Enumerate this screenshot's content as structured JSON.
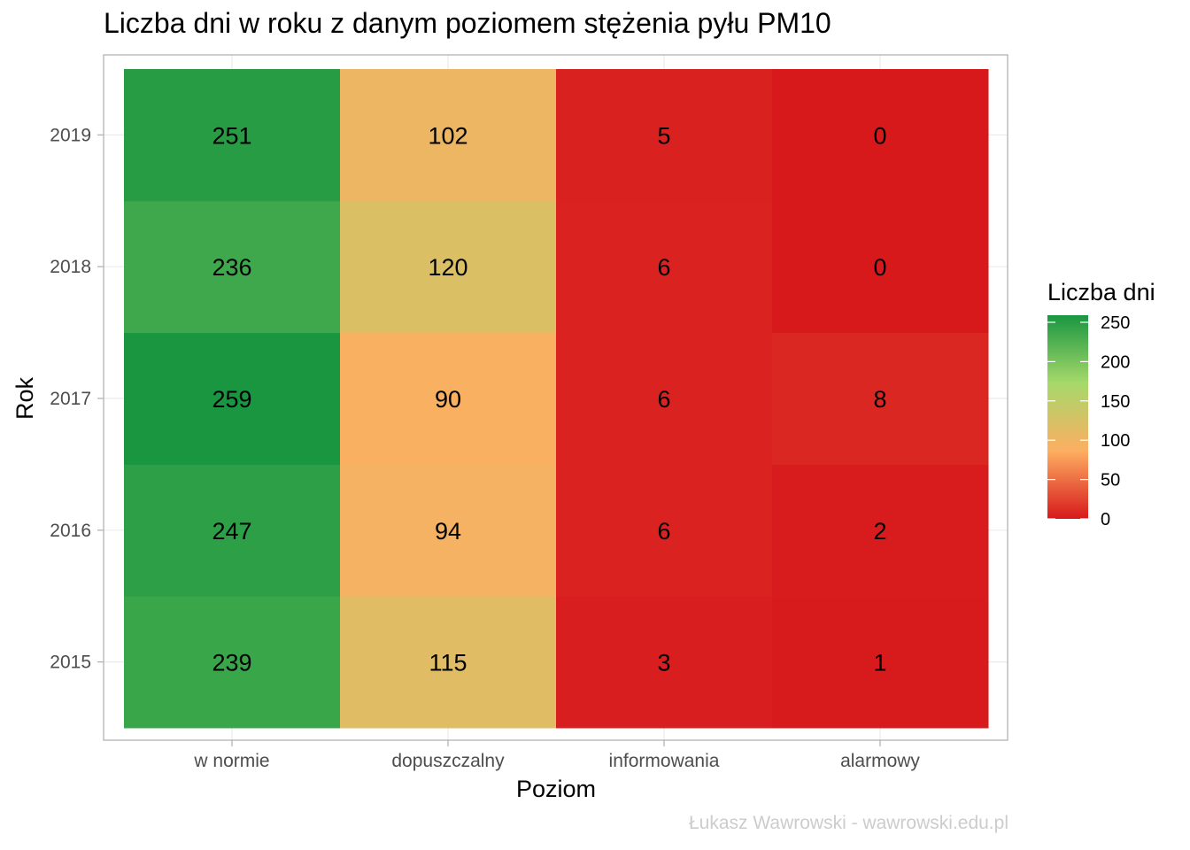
{
  "chart_data": {
    "type": "heatmap",
    "title": "Liczba dni w roku z danym poziomem stężenia pyłu PM10",
    "xlabel": "Poziom",
    "ylabel": "Rok",
    "x_categories": [
      "w normie",
      "dopuszczalny",
      "informowania",
      "alarmowy"
    ],
    "y_categories": [
      "2015",
      "2016",
      "2017",
      "2018",
      "2019"
    ],
    "values": [
      [
        239,
        115,
        3,
        1
      ],
      [
        247,
        94,
        6,
        2
      ],
      [
        259,
        90,
        6,
        8
      ],
      [
        236,
        120,
        6,
        0
      ],
      [
        251,
        102,
        5,
        0
      ]
    ],
    "legend": {
      "title": "Liczba dni",
      "position": "right",
      "range": [
        0,
        259
      ],
      "ticks": [
        0,
        50,
        100,
        150,
        200,
        250
      ],
      "colors": [
        "#d7191c",
        "#fdae61",
        "#a6d96a",
        "#1a9641"
      ]
    },
    "grid": true,
    "caption": "Łukasz Wawrowski - wawrowski.edu.pl"
  }
}
